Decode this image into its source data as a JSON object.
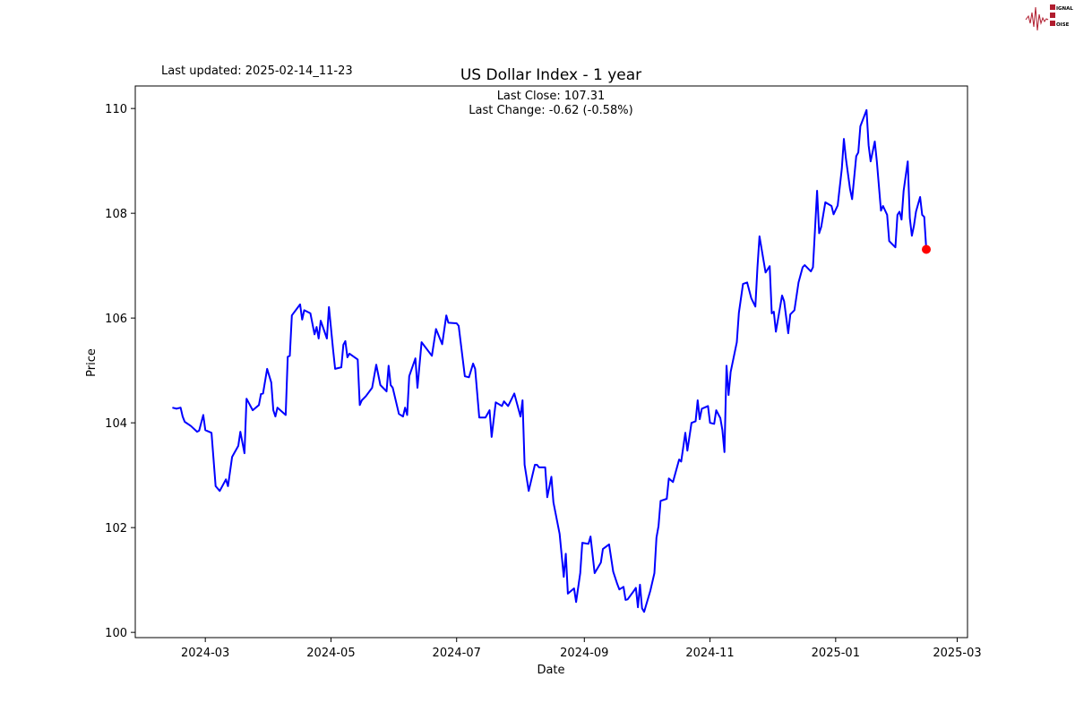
{
  "updated_note": "Last updated: 2025-02-14_11-23",
  "logo": {
    "text": "SIGNAL 2 NOISE",
    "color": "#b01c2e"
  },
  "chart_data": {
    "type": "line",
    "title": "US Dollar Index - 1 year",
    "annotation_close": "Last Close: 107.31",
    "annotation_change": "Last Change: -0.62 (-0.58%)",
    "xlabel": "Date",
    "ylabel": "Price",
    "xlim": [
      "2024-01-27",
      "2025-03-06"
    ],
    "ylim": [
      99.9,
      110.43
    ],
    "xticks": [
      "2024-03",
      "2024-05",
      "2024-07",
      "2024-09",
      "2024-11",
      "2025-01",
      "2025-03"
    ],
    "yticks": [
      100,
      102,
      104,
      106,
      108,
      110
    ],
    "grid": false,
    "line_color": "#0000ff",
    "marker_color": "#ff0000",
    "last_point": {
      "x": "2025-02-14",
      "y": 107.31
    },
    "series": [
      {
        "x": [
          "2024-02-14",
          "2024-02-16",
          "2024-02-18",
          "2024-02-19",
          "2024-02-20",
          "2024-02-23",
          "2024-02-26",
          "2024-02-27",
          "2024-02-29",
          "2024-03-01",
          "2024-03-04",
          "2024-03-06",
          "2024-03-08",
          "2024-03-11",
          "2024-03-12",
          "2024-03-14",
          "2024-03-17",
          "2024-03-18",
          "2024-03-20",
          "2024-03-21",
          "2024-03-24",
          "2024-03-27",
          "2024-03-28",
          "2024-03-29",
          "2024-03-31",
          "2024-04-02",
          "2024-04-03",
          "2024-04-04",
          "2024-04-05",
          "2024-04-09",
          "2024-04-10",
          "2024-04-11",
          "2024-04-12",
          "2024-04-16",
          "2024-04-17",
          "2024-04-18",
          "2024-04-21",
          "2024-04-23",
          "2024-04-24",
          "2024-04-25",
          "2024-04-26",
          "2024-04-29",
          "2024-04-30",
          "2024-05-02",
          "2024-05-03",
          "2024-05-06",
          "2024-05-07",
          "2024-05-08",
          "2024-05-09",
          "2024-05-10",
          "2024-05-14",
          "2024-05-15",
          "2024-05-16",
          "2024-05-18",
          "2024-05-21",
          "2024-05-23",
          "2024-05-25",
          "2024-05-28",
          "2024-05-29",
          "2024-05-30",
          "2024-05-31",
          "2024-06-03",
          "2024-06-05",
          "2024-06-06",
          "2024-06-07",
          "2024-06-08",
          "2024-06-11",
          "2024-06-12",
          "2024-06-14",
          "2024-06-19",
          "2024-06-21",
          "2024-06-24",
          "2024-06-26",
          "2024-06-27",
          "2024-07-01",
          "2024-07-02",
          "2024-07-05",
          "2024-07-07",
          "2024-07-09",
          "2024-07-10",
          "2024-07-12",
          "2024-07-15",
          "2024-07-17",
          "2024-07-18",
          "2024-07-20",
          "2024-07-23",
          "2024-07-24",
          "2024-07-26",
          "2024-07-29",
          "2024-08-01",
          "2024-08-02",
          "2024-08-03",
          "2024-08-05",
          "2024-08-08",
          "2024-08-09",
          "2024-08-10",
          "2024-08-13",
          "2024-08-14",
          "2024-08-16",
          "2024-08-17",
          "2024-08-20",
          "2024-08-22",
          "2024-08-23",
          "2024-08-24",
          "2024-08-27",
          "2024-08-28",
          "2024-08-30",
          "2024-08-31",
          "2024-09-03",
          "2024-09-04",
          "2024-09-06",
          "2024-09-09",
          "2024-09-10",
          "2024-09-13",
          "2024-09-15",
          "2024-09-17",
          "2024-09-18",
          "2024-09-20",
          "2024-09-21",
          "2024-09-22",
          "2024-09-25",
          "2024-09-26",
          "2024-09-27",
          "2024-09-28",
          "2024-09-29",
          "2024-09-30",
          "2024-10-03",
          "2024-10-05",
          "2024-10-06",
          "2024-10-07",
          "2024-10-08",
          "2024-10-11",
          "2024-10-12",
          "2024-10-14",
          "2024-10-17",
          "2024-10-18",
          "2024-10-20",
          "2024-10-21",
          "2024-10-23",
          "2024-10-25",
          "2024-10-26",
          "2024-10-27",
          "2024-10-28",
          "2024-10-31",
          "2024-11-01",
          "2024-11-03",
          "2024-11-04",
          "2024-11-06",
          "2024-11-07",
          "2024-11-08",
          "2024-11-09",
          "2024-11-10",
          "2024-11-11",
          "2024-11-14",
          "2024-11-15",
          "2024-11-17",
          "2024-11-19",
          "2024-11-21",
          "2024-11-23",
          "2024-11-24",
          "2024-11-25",
          "2024-11-28",
          "2024-11-30",
          "2024-12-01",
          "2024-12-02",
          "2024-12-03",
          "2024-12-06",
          "2024-12-07",
          "2024-12-09",
          "2024-12-10",
          "2024-12-12",
          "2024-12-14",
          "2024-12-16",
          "2024-12-17",
          "2024-12-20",
          "2024-12-21",
          "2024-12-23",
          "2024-12-24",
          "2024-12-25",
          "2024-12-27",
          "2024-12-30",
          "2024-12-31",
          "2025-01-02",
          "2025-01-04",
          "2025-01-05",
          "2025-01-06",
          "2025-01-08",
          "2025-01-09",
          "2025-01-11",
          "2025-01-12",
          "2025-01-13",
          "2025-01-16",
          "2025-01-17",
          "2025-01-18",
          "2025-01-20",
          "2025-01-21",
          "2025-01-23",
          "2025-01-24",
          "2025-01-26",
          "2025-01-27",
          "2025-01-30",
          "2025-01-31",
          "2025-02-01",
          "2025-02-02",
          "2025-02-03",
          "2025-02-05",
          "2025-02-06",
          "2025-02-07",
          "2025-02-08",
          "2025-02-09",
          "2025-02-11",
          "2025-02-12",
          "2025-02-13",
          "2025-02-14"
        ],
        "y": [
          104.29,
          104.27,
          104.29,
          104.12,
          104.02,
          103.94,
          103.83,
          103.85,
          104.15,
          103.86,
          103.81,
          102.79,
          102.7,
          102.92,
          102.79,
          103.35,
          103.56,
          103.83,
          103.42,
          104.46,
          104.24,
          104.34,
          104.55,
          104.56,
          105.03,
          104.77,
          104.24,
          104.12,
          104.29,
          104.15,
          105.26,
          105.28,
          106.05,
          106.26,
          105.97,
          106.15,
          106.09,
          105.69,
          105.83,
          105.61,
          105.95,
          105.61,
          106.21,
          105.4,
          105.03,
          105.06,
          105.49,
          105.56,
          105.25,
          105.32,
          105.21,
          104.34,
          104.43,
          104.51,
          104.67,
          105.11,
          104.72,
          104.6,
          105.09,
          104.72,
          104.67,
          104.17,
          104.12,
          104.29,
          104.15,
          104.89,
          105.23,
          104.67,
          105.54,
          105.28,
          105.79,
          105.5,
          106.05,
          105.91,
          105.9,
          105.85,
          104.89,
          104.87,
          105.13,
          105.03,
          104.1,
          104.1,
          104.24,
          103.73,
          104.39,
          104.32,
          104.41,
          104.32,
          104.56,
          104.12,
          104.43,
          103.2,
          102.7,
          103.2,
          103.2,
          103.15,
          103.15,
          102.58,
          102.97,
          102.48,
          101.88,
          101.06,
          101.5,
          100.74,
          100.84,
          100.58,
          101.13,
          101.71,
          101.69,
          101.83,
          101.13,
          101.33,
          101.59,
          101.68,
          101.16,
          100.92,
          100.82,
          100.87,
          100.62,
          100.63,
          100.79,
          100.85,
          100.48,
          100.91,
          100.46,
          100.39,
          100.79,
          101.13,
          101.81,
          102.03,
          102.51,
          102.55,
          102.94,
          102.87,
          103.3,
          103.26,
          103.81,
          103.47,
          104.0,
          104.03,
          104.43,
          104.07,
          104.27,
          104.32,
          104.0,
          103.98,
          104.24,
          104.09,
          103.86,
          103.44,
          105.09,
          104.53,
          104.97,
          105.54,
          106.1,
          106.65,
          106.68,
          106.38,
          106.22,
          106.96,
          107.56,
          106.87,
          106.99,
          106.09,
          106.12,
          105.74,
          106.43,
          106.32,
          105.71,
          106.07,
          106.15,
          106.68,
          106.97,
          107.01,
          106.89,
          106.97,
          108.43,
          107.62,
          107.74,
          108.21,
          108.14,
          107.98,
          108.15,
          108.85,
          109.42,
          109.04,
          108.46,
          108.27,
          109.09,
          109.16,
          109.66,
          109.97,
          109.3,
          108.99,
          109.37,
          108.99,
          108.05,
          108.14,
          107.97,
          107.47,
          107.35,
          107.97,
          108.03,
          107.88,
          108.43,
          108.99,
          107.91,
          107.57,
          107.76,
          108.03,
          108.31,
          107.97,
          107.93,
          107.31
        ]
      }
    ]
  }
}
